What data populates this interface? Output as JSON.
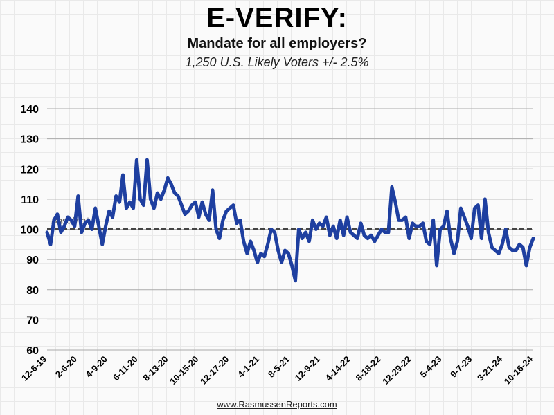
{
  "header": {
    "title": "E-VERIFY:",
    "subtitle": "Mandate for all employers?",
    "subtitle2": "1,250 U.S. Likely Voters +/- 2.5%"
  },
  "footer": {
    "source": "www.RasmussenReports.com"
  },
  "colors": {
    "line": "#1e3fa0",
    "baseline": "#444444",
    "grid": "#aaaaaa"
  },
  "chart_data": {
    "type": "line",
    "title": "E-VERIFY:",
    "ylim": [
      60,
      140
    ],
    "yticks": [
      60,
      70,
      80,
      90,
      100,
      110,
      120,
      130,
      140
    ],
    "xticks": [
      "12-6-19",
      "2-6-20",
      "4-9-20",
      "6-11-20",
      "8-13-20",
      "10-15-20",
      "12-17-20",
      "4-1-21",
      "8-5-21",
      "12-9-21",
      "4-14-22",
      "8-18-22",
      "12-29-22",
      "5-4-23",
      "9-7-23",
      "3-21-24",
      "10-16-24"
    ],
    "baseline": {
      "value": 100,
      "label": "Baseline*"
    },
    "grid": true,
    "series": [
      {
        "values": [
          99,
          95,
          103,
          105,
          99,
          101,
          104,
          103,
          101,
          111,
          99,
          102,
          103,
          100,
          107,
          101,
          95,
          101,
          106,
          104,
          111,
          109,
          118,
          107,
          109,
          107,
          123,
          110,
          108,
          123,
          110,
          107,
          112,
          110,
          113,
          117,
          115,
          112,
          111,
          108,
          105,
          106,
          108,
          109,
          104,
          109,
          105,
          103,
          113,
          100,
          97,
          103,
          106,
          107,
          108,
          102,
          103,
          96,
          92,
          96,
          93,
          89,
          92,
          91,
          95,
          100,
          99,
          93,
          89,
          93,
          92,
          88,
          83,
          100,
          97,
          99,
          96,
          103,
          100,
          102,
          101,
          104,
          98,
          101,
          97,
          103,
          98,
          104,
          99,
          98,
          97,
          102,
          98,
          97,
          98,
          96,
          98,
          100,
          99,
          99,
          114,
          109,
          103,
          103,
          104,
          97,
          102,
          101,
          101,
          102,
          96,
          95,
          103,
          88,
          100,
          101,
          106,
          97,
          92,
          96,
          107,
          104,
          101,
          97,
          107,
          108,
          97,
          110,
          99,
          94,
          93,
          92,
          95,
          100,
          94,
          93,
          93,
          95,
          94,
          88,
          94,
          97
        ]
      }
    ]
  }
}
